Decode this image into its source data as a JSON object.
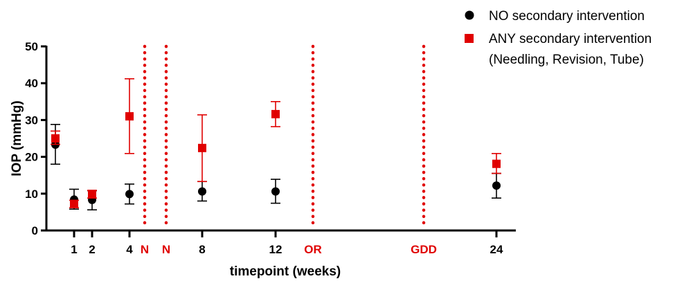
{
  "chart_data": {
    "type": "scatter",
    "xlabel": "timepoint (weeks)",
    "ylabel": "IOP (mmHg)",
    "ylim": [
      0,
      50
    ],
    "yticks": [
      0,
      10,
      20,
      30,
      40,
      50
    ],
    "grid": false,
    "legend_placement": "top-right",
    "x_tick_labels": [
      "1",
      "2",
      "4",
      "8",
      "12",
      "24"
    ],
    "x_positions": [
      0,
      1,
      2,
      4,
      8,
      12,
      24
    ],
    "event_markers": [
      {
        "label": "N",
        "after_week": 4,
        "order": 1
      },
      {
        "label": "N",
        "after_week": 4,
        "order": 2
      },
      {
        "label": "OR",
        "after_week": 12,
        "order": 1
      },
      {
        "label": "GDD",
        "after_week": 12,
        "order": 2
      }
    ],
    "series": [
      {
        "name": "NO secondary intervention",
        "marker": "circle",
        "color": "#000000",
        "points": [
          {
            "x": 0,
            "y": 23.3,
            "err_low": 18.0,
            "err_high": 28.8
          },
          {
            "x": 1,
            "y": 8.4,
            "err_low": 5.8,
            "err_high": 11.2
          },
          {
            "x": 2,
            "y": 8.3,
            "err_low": 5.6,
            "err_high": 10.8
          },
          {
            "x": 4,
            "y": 9.9,
            "err_low": 7.2,
            "err_high": 12.6
          },
          {
            "x": 8,
            "y": 10.6,
            "err_low": 8.0,
            "err_high": 13.3
          },
          {
            "x": 12,
            "y": 10.6,
            "err_low": 7.4,
            "err_high": 13.9
          },
          {
            "x": 24,
            "y": 12.2,
            "err_low": 8.8,
            "err_high": 15.5
          }
        ]
      },
      {
        "name": "ANY secondary intervention",
        "name_line2": "(Needling, Revision, Tube)",
        "marker": "square",
        "color": "#e00000",
        "points": [
          {
            "x": 0,
            "y": 25.0,
            "err_low": 23.4,
            "err_high": 27.0
          },
          {
            "x": 1,
            "y": 7.2,
            "err_low": 6.2,
            "err_high": 8.2
          },
          {
            "x": 2,
            "y": 9.9,
            "err_low": 8.8,
            "err_high": 10.9
          },
          {
            "x": 4,
            "y": 31.0,
            "err_low": 20.9,
            "err_high": 41.2
          },
          {
            "x": 8,
            "y": 22.4,
            "err_low": 13.3,
            "err_high": 31.4
          },
          {
            "x": 12,
            "y": 31.6,
            "err_low": 28.2,
            "err_high": 35.0
          },
          {
            "x": 24,
            "y": 18.1,
            "err_low": 15.5,
            "err_high": 20.9
          }
        ]
      }
    ]
  }
}
